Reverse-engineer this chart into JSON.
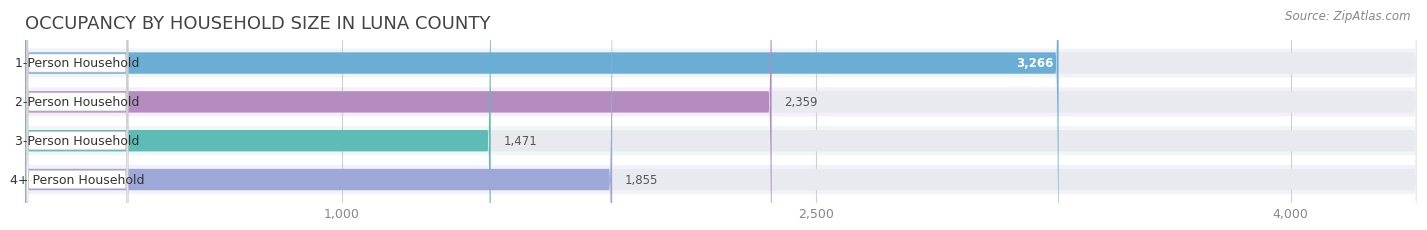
{
  "title": "OCCUPANCY BY HOUSEHOLD SIZE IN LUNA COUNTY",
  "source": "Source: ZipAtlas.com",
  "categories": [
    "1-Person Household",
    "2-Person Household",
    "3-Person Household",
    "4+ Person Household"
  ],
  "values": [
    3266,
    2359,
    1471,
    1855
  ],
  "bar_colors": [
    "#6aaed6",
    "#b48cbf",
    "#5dbcb5",
    "#9ea8d8"
  ],
  "label_colors": [
    "#ffffff",
    "#666666",
    "#666666",
    "#666666"
  ],
  "value_inside": [
    true,
    false,
    false,
    false
  ],
  "xlim": [
    0,
    4400
  ],
  "xticks": [
    1000,
    2500,
    4000
  ],
  "background_color": "#ffffff",
  "bar_bg_color": "#e8eaf0",
  "row_bg_colors": [
    "#f0f4f8",
    "#f5f0f8",
    "#f0f7f6",
    "#f2f2f8"
  ],
  "title_fontsize": 13,
  "source_fontsize": 8.5,
  "tick_fontsize": 9,
  "bar_label_fontsize": 8.5,
  "category_fontsize": 9
}
